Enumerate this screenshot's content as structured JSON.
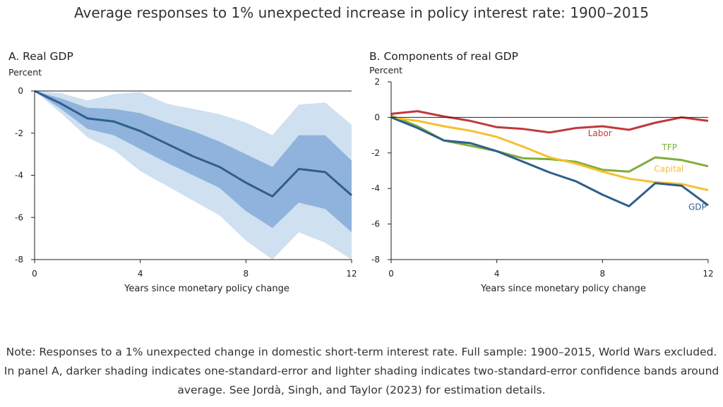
{
  "title": "Average responses to 1% unexpected increase in policy interest rate: 1900–2015",
  "note": "Note: Responses to a 1% unexpected change in domestic short-term interest rate. Full sample: 1900–2015, World Wars excluded. In panel A, darker shading indicates one-standard-error and lighter shading indicates two-standard-error confidence bands around average. See Jordà, Singh, and Taylor (2023) for estimation details.",
  "colors": {
    "gdp": "#2f5e8e",
    "band_inner": "#8fb3dc",
    "band_outer": "#cfe0f0",
    "labor": "#c0393b",
    "tfp": "#7fae3a",
    "capital": "#f5c02c"
  },
  "chart_data": [
    {
      "type": "area",
      "title": "A. Real GDP",
      "unit": "Percent",
      "xlabel": "Years since monetary policy change",
      "ylabel": "Percent",
      "xlim": [
        0,
        12
      ],
      "ylim": [
        -8,
        0
      ],
      "xticks": [
        "0",
        "4",
        "8",
        "12"
      ],
      "yticks": [
        "0",
        "-2",
        "-4",
        "-6",
        "-8"
      ],
      "x": [
        0,
        1,
        2,
        3,
        4,
        5,
        6,
        7,
        8,
        9,
        10,
        11,
        12
      ],
      "series": [
        {
          "role": "average",
          "values": [
            0,
            -0.6,
            -1.3,
            -1.45,
            -1.9,
            -2.5,
            -3.1,
            -3.6,
            -4.35,
            -5.0,
            -3.7,
            -3.85,
            -4.95
          ]
        },
        {
          "role": "one-standard-error band",
          "upper": [
            0,
            -0.35,
            -0.8,
            -0.85,
            -1.05,
            -1.5,
            -1.9,
            -2.4,
            -3.0,
            -3.6,
            -2.1,
            -2.1,
            -3.3
          ],
          "lower": [
            0,
            -0.85,
            -1.8,
            -2.1,
            -2.75,
            -3.4,
            -4.0,
            -4.6,
            -5.7,
            -6.5,
            -5.3,
            -5.6,
            -6.7
          ]
        },
        {
          "role": "two-standard-error band",
          "upper": [
            0,
            -0.1,
            -0.45,
            -0.15,
            -0.05,
            -0.6,
            -0.85,
            -1.1,
            -1.5,
            -2.1,
            -0.65,
            -0.55,
            -1.6
          ],
          "lower": [
            0,
            -1.05,
            -2.2,
            -2.8,
            -3.8,
            -4.5,
            -5.2,
            -5.9,
            -7.1,
            -8.0,
            -6.7,
            -7.2,
            -8.0
          ]
        }
      ]
    },
    {
      "type": "line",
      "title": "B. Components of real GDP",
      "unit": "Percent",
      "xlabel": "Years since monetary policy change",
      "ylabel": "Percent",
      "xlim": [
        0,
        12
      ],
      "ylim": [
        -8,
        2
      ],
      "xticks": [
        "0",
        "4",
        "8",
        "12"
      ],
      "yticks": [
        "2",
        "0",
        "-2",
        "-4",
        "-6",
        "-8"
      ],
      "x": [
        0,
        1,
        2,
        3,
        4,
        5,
        6,
        7,
        8,
        9,
        10,
        11,
        12
      ],
      "series": [
        {
          "name": "Labor",
          "values": [
            0.2,
            0.35,
            0.05,
            -0.2,
            -0.55,
            -0.65,
            -0.85,
            -0.6,
            -0.5,
            -0.7,
            -0.3,
            0.0,
            -0.2
          ]
        },
        {
          "name": "TFP",
          "values": [
            0.1,
            -0.5,
            -1.3,
            -1.6,
            -1.9,
            -2.3,
            -2.35,
            -2.5,
            -2.95,
            -3.05,
            -2.25,
            -2.4,
            -2.75
          ]
        },
        {
          "name": "Capital",
          "values": [
            0.0,
            -0.2,
            -0.5,
            -0.75,
            -1.1,
            -1.65,
            -2.25,
            -2.6,
            -3.05,
            -3.45,
            -3.65,
            -3.75,
            -4.1
          ]
        },
        {
          "name": "GDP",
          "values": [
            0,
            -0.6,
            -1.3,
            -1.45,
            -1.9,
            -2.5,
            -3.1,
            -3.6,
            -4.35,
            -5.0,
            -3.7,
            -3.85,
            -4.95
          ]
        }
      ]
    }
  ]
}
